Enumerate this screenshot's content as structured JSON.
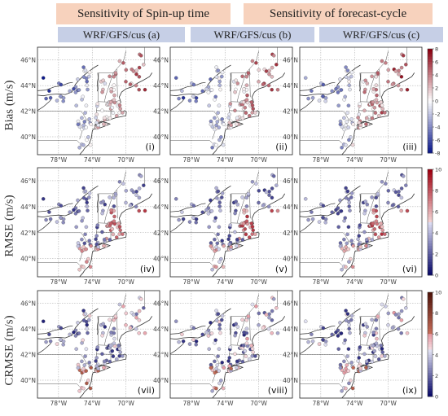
{
  "headers": {
    "spinup": "Sensitivity of Spin-up time",
    "forecast": "Sensitivity of forecast-cycle"
  },
  "columns": [
    "WRF/GFS/cus (a)",
    "WRF/GFS/cus (b)",
    "WRF/GFS/cus (c)"
  ],
  "rows": [
    {
      "label": "Bias (m/s)",
      "colorbar_ticks": [
        "8",
        "6",
        "4",
        "2",
        "0",
        "-2",
        "-4",
        "-6",
        "-8"
      ],
      "cmap": "bias"
    },
    {
      "label": "RMSE (m/s)",
      "colorbar_ticks": [
        "10",
        "8",
        "6",
        "4",
        "2",
        "0"
      ],
      "cmap": "err"
    },
    {
      "label": "CRMSE (m/s)",
      "colorbar_ticks": [
        "10",
        "8",
        "6",
        "4",
        "2",
        "0"
      ],
      "cmap": "crmse"
    }
  ],
  "panel_labels": [
    "(i)",
    "(ii)",
    "(iii)",
    "(iv)",
    "(v)",
    "(vi)",
    "(vii)",
    "(viii)",
    "(ix)"
  ],
  "lat_labels": [
    "46°N",
    "44°N",
    "42°N",
    "40°N"
  ],
  "lon_labels": [
    "78°W",
    "74°W",
    "70°W"
  ],
  "colors": {
    "header_bg": "#f7d2bd",
    "subheader_bg": "#c6cfe6",
    "bias_low": "#0d1a8c",
    "bias_high": "#8c0010",
    "err_low": "#0a0a6a",
    "err_high": "#a00010"
  }
}
